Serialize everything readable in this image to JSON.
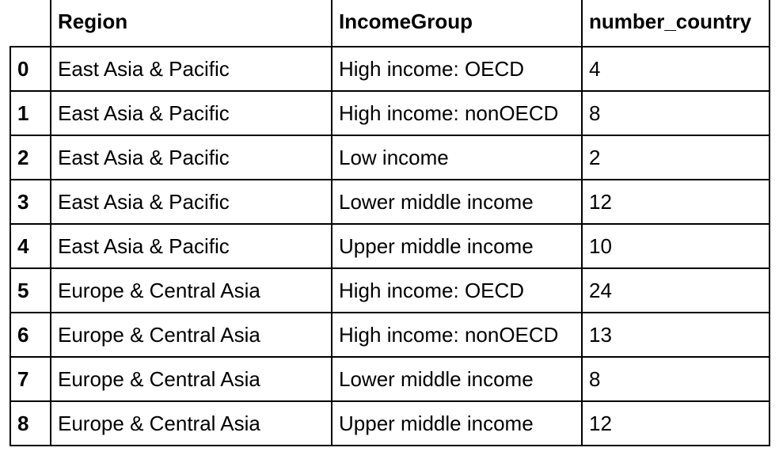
{
  "table": {
    "index_header": "",
    "columns": [
      "Region",
      "IncomeGroup",
      "number_country"
    ],
    "rows": [
      {
        "index": "0",
        "region": "East Asia & Pacific",
        "income_group": "High income: OECD",
        "number_country": "4"
      },
      {
        "index": "1",
        "region": "East Asia & Pacific",
        "income_group": "High income: nonOECD",
        "number_country": "8"
      },
      {
        "index": "2",
        "region": "East Asia & Pacific",
        "income_group": "Low income",
        "number_country": "2"
      },
      {
        "index": "3",
        "region": "East Asia & Pacific",
        "income_group": "Lower middle income",
        "number_country": "12"
      },
      {
        "index": "4",
        "region": "East Asia & Pacific",
        "income_group": "Upper middle income",
        "number_country": "10"
      },
      {
        "index": "5",
        "region": "Europe & Central Asia",
        "income_group": "High income: OECD",
        "number_country": "24"
      },
      {
        "index": "6",
        "region": "Europe & Central Asia",
        "income_group": "High income: nonOECD",
        "number_country": "13"
      },
      {
        "index": "7",
        "region": "Europe & Central Asia",
        "income_group": "Lower middle income",
        "number_country": "8"
      },
      {
        "index": "8",
        "region": "Europe & Central Asia",
        "income_group": "Upper middle income",
        "number_country": "12"
      }
    ]
  }
}
